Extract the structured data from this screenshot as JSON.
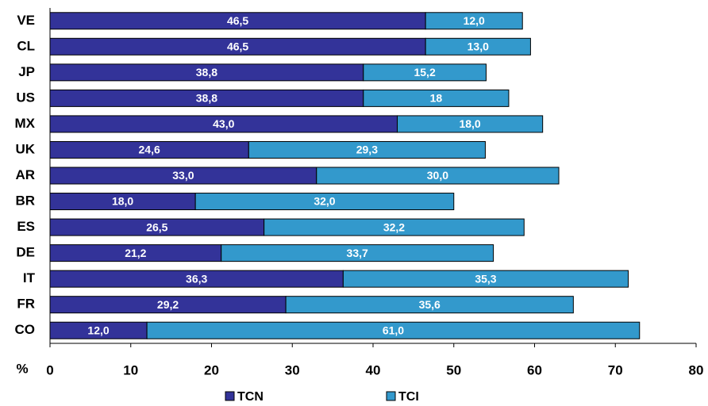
{
  "chart_data": {
    "type": "stacked_barh",
    "categories": [
      "VE",
      "CL",
      "JP",
      "US",
      "MX",
      "UK",
      "AR",
      "BR",
      "ES",
      "DE",
      "IT",
      "FR",
      "CO"
    ],
    "series": [
      {
        "name": "TCN",
        "color": "#333399",
        "values": [
          46.5,
          46.5,
          38.8,
          38.8,
          43.0,
          24.6,
          33.0,
          18.0,
          26.5,
          21.2,
          36.3,
          29.2,
          12.0
        ],
        "value_labels": [
          "46,5",
          "46,5",
          "38,8",
          "38,8",
          "43,0",
          "24,6",
          "33,0",
          "18,0",
          "26,5",
          "21,2",
          "36,3",
          "29,2",
          "12,0"
        ]
      },
      {
        "name": "TCI",
        "color": "#3399cc",
        "values": [
          12.0,
          13.0,
          15.2,
          18,
          18.0,
          29.3,
          30.0,
          32.0,
          32.2,
          33.7,
          35.3,
          35.6,
          61.0
        ],
        "value_labels": [
          "12,0",
          "13,0",
          "15,2",
          "18",
          "18,0",
          "29,3",
          "30,0",
          "32,0",
          "32,2",
          "33,7",
          "35,3",
          "35,6",
          "61,0"
        ]
      }
    ],
    "x_label": "%",
    "xlim": [
      0,
      80
    ],
    "xticks": [
      0,
      10,
      20,
      30,
      40,
      50,
      60,
      70,
      80
    ],
    "legend": "bottom"
  }
}
